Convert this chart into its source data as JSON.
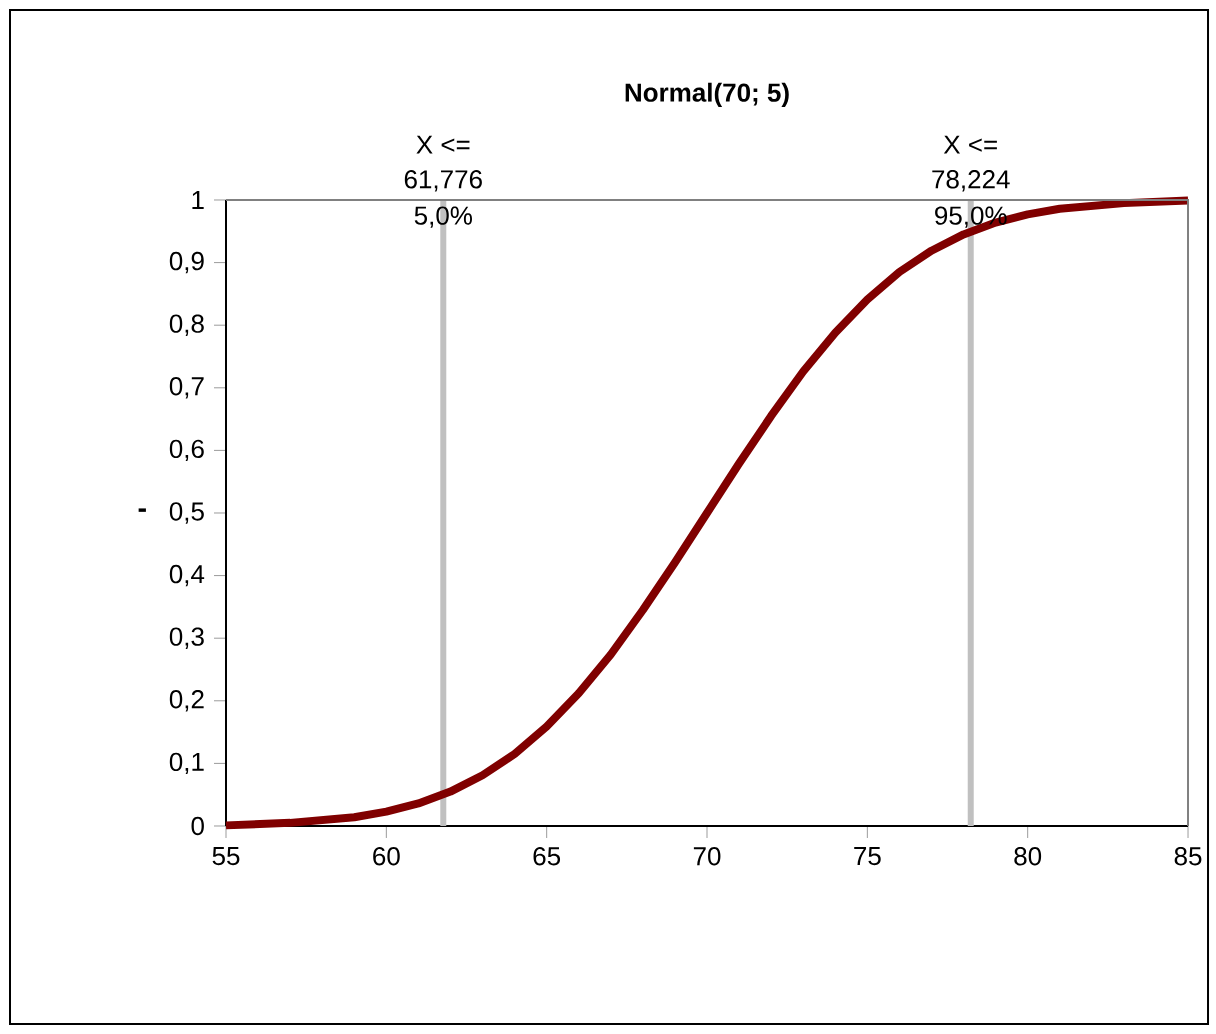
{
  "chart_data": {
    "type": "line",
    "title": "Normal(70; 5)",
    "ylabel": "-",
    "x": [
      55,
      57,
      59,
      60,
      61,
      62,
      63,
      64,
      65,
      66,
      67,
      68,
      69,
      70,
      71,
      72,
      73,
      74,
      75,
      76,
      77,
      78,
      79,
      80,
      81,
      83,
      85
    ],
    "series": [
      {
        "color": "#800000",
        "values": [
          0.001,
          0.005,
          0.014,
          0.023,
          0.036,
          0.055,
          0.081,
          0.115,
          0.159,
          0.212,
          0.274,
          0.345,
          0.421,
          0.5,
          0.579,
          0.655,
          0.726,
          0.788,
          0.841,
          0.885,
          0.919,
          0.945,
          0.964,
          0.977,
          0.986,
          0.995,
          0.999
        ]
      }
    ],
    "xlim": [
      55,
      85
    ],
    "ylim": [
      0,
      1
    ],
    "xticks": [
      55,
      60,
      65,
      70,
      75,
      80,
      85
    ],
    "yticks": [
      0,
      {
        "value": 0.1,
        "label": "0,1"
      },
      {
        "value": 0.2,
        "label": "0,2"
      },
      {
        "value": 0.3,
        "label": "0,3"
      },
      {
        "value": 0.4,
        "label": "0,4"
      },
      {
        "value": 0.5,
        "label": "0,5"
      },
      {
        "value": 0.6,
        "label": "0,6"
      },
      {
        "value": 0.7,
        "label": "0,7"
      },
      {
        "value": 0.8,
        "label": "0,8"
      },
      {
        "value": 0.9,
        "label": "0,9"
      },
      1
    ],
    "ref_lines": [
      {
        "axis": "x",
        "value": 61.776,
        "label": "X <=",
        "color": "#c0c0c0"
      },
      {
        "axis": "x",
        "value": 78.224,
        "label": "X <=",
        "color": "#c0c0c0"
      }
    ],
    "annotations": [
      "61,776",
      "5,0%",
      "78,224",
      "95,0%"
    ],
    "grid": false,
    "marker": "none",
    "line_style": "solid"
  }
}
